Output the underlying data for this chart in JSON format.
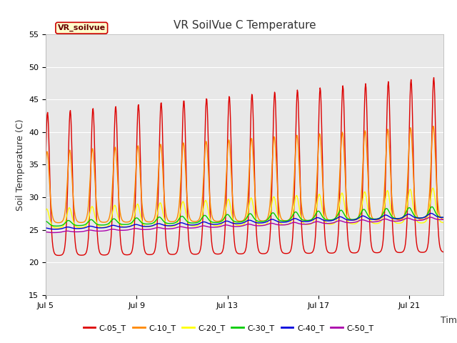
{
  "title": "VR SoilVue C Temperature",
  "xlabel": "Time",
  "ylabel": "Soil Temperature (C)",
  "ylim": [
    15,
    55
  ],
  "xlim_days": [
    0,
    17.5
  ],
  "x_ticks_labels": [
    "Jul 5",
    "Jul 9",
    "Jul 13",
    "Jul 17",
    "Jul 21"
  ],
  "x_ticks_days": [
    0,
    4,
    8,
    12,
    16
  ],
  "y_ticks": [
    15,
    20,
    25,
    30,
    35,
    40,
    45,
    50,
    55
  ],
  "series": {
    "C-05_T": {
      "color": "#dd0000",
      "lw": 1.0
    },
    "C-10_T": {
      "color": "#ff8800",
      "lw": 1.0
    },
    "C-20_T": {
      "color": "#ffff00",
      "lw": 1.0
    },
    "C-30_T": {
      "color": "#00cc00",
      "lw": 1.0
    },
    "C-40_T": {
      "color": "#0000dd",
      "lw": 1.0
    },
    "C-50_T": {
      "color": "#aa00aa",
      "lw": 1.0
    }
  },
  "label_text": "VR_soilvue",
  "label_bg": "#ffffcc",
  "label_border": "#cc0000",
  "plot_bg": "#e8e8e8",
  "fig_bg": "#ffffff",
  "grid_color": "#ffffff",
  "title_fontsize": 11,
  "axis_label_fontsize": 9,
  "tick_fontsize": 8,
  "legend_fontsize": 8
}
